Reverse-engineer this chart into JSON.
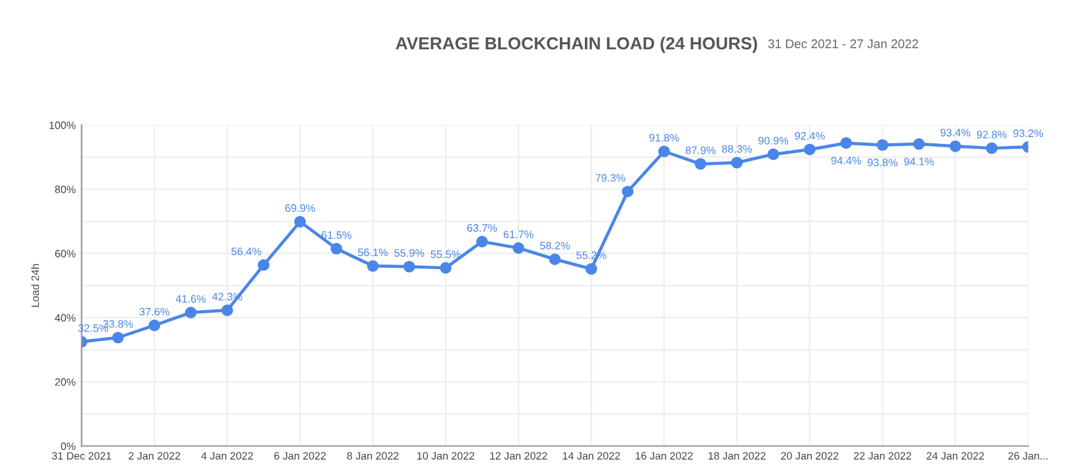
{
  "chart_data": {
    "type": "line",
    "title": "AVERAGE BLOCKCHAIN LOAD (24 HOURS)",
    "ylabel": "Load 24h",
    "annotations": [
      "31 Dec 2021 - 27 Jan 2022"
    ],
    "categories": [
      "31 Dec 2021",
      null,
      "2 Jan 2022",
      null,
      "4 Jan 2022",
      null,
      "6 Jan 2022",
      null,
      "8 Jan 2022",
      null,
      "10 Jan 2022",
      null,
      "12 Jan 2022",
      null,
      "14 Jan 2022",
      null,
      "16 Jan 2022",
      null,
      "18 Jan 2022",
      null,
      "20 Jan 2022",
      null,
      "22 Jan 2022",
      null,
      "24 Jan 2022",
      null,
      "26 Jan..."
    ],
    "series": [
      {
        "color": "#4a86e8",
        "values": [
          32.5,
          33.8,
          37.6,
          41.6,
          42.3,
          56.4,
          69.9,
          61.5,
          56.1,
          55.9,
          55.5,
          63.7,
          61.7,
          58.2,
          55.2,
          79.3,
          91.8,
          87.9,
          88.3,
          90.9,
          92.4,
          94.4,
          93.8,
          94.1,
          93.4,
          92.8,
          93.2
        ],
        "value_labels": [
          "32.5%",
          "33.8%",
          "37.6%",
          "41.6%",
          "42.3%",
          "56.4%",
          "69.9%",
          "61.5%",
          "56.1%",
          "55.9%",
          "55.5%",
          "63.7%",
          "61.7%",
          "58.2%",
          "55.2%",
          "79.3%",
          "91.8%",
          "87.9%",
          "88.3%",
          "90.9%",
          "92.4%",
          "94.4%",
          "93.8%",
          "94.1%",
          "93.4%",
          "92.8%",
          "93.2%"
        ]
      }
    ],
    "ylim": [
      0,
      100
    ],
    "yticks": [
      {
        "value": 0,
        "label": "0%"
      },
      {
        "value": 10,
        "label": null
      },
      {
        "value": 20,
        "label": "20%"
      },
      {
        "value": 30,
        "label": null
      },
      {
        "value": 40,
        "label": "40%"
      },
      {
        "value": 50,
        "label": null
      },
      {
        "value": 60,
        "label": "60%"
      },
      {
        "value": 70,
        "label": null
      },
      {
        "value": 80,
        "label": "80%"
      },
      {
        "value": 90,
        "label": null
      },
      {
        "value": 100,
        "label": "100%"
      }
    ],
    "grid": true,
    "marker": "circle",
    "line_style": "solid",
    "legend": false
  }
}
